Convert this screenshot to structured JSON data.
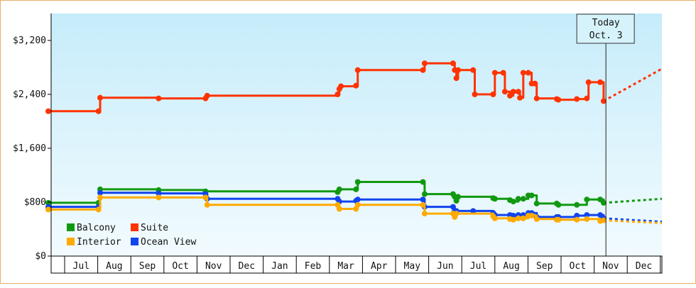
{
  "chart_data": {
    "type": "line",
    "title": "",
    "xlabel": "",
    "ylabel": "",
    "ylim": [
      0,
      3600
    ],
    "y_ticks": [
      {
        "value": 0,
        "label": "$0"
      },
      {
        "value": 800,
        "label": "$800"
      },
      {
        "value": 1600,
        "label": "$1,600"
      },
      {
        "value": 2400,
        "label": "$2,400"
      },
      {
        "value": 3200,
        "label": "$3,200"
      }
    ],
    "x_months": [
      "Jul",
      "Aug",
      "Sep",
      "Oct",
      "Nov",
      "Dec",
      "Jan",
      "Feb",
      "Mar",
      "Apr",
      "May",
      "Jun",
      "Jul",
      "Aug",
      "Sep",
      "Oct",
      "Nov",
      "Dec"
    ],
    "today": {
      "line1": "Today",
      "line2": "Oct. 3",
      "x": 15.67
    },
    "grid": false,
    "legend_position": "bottom-left",
    "background_gradient": [
      "#c6ecfa",
      "#f2fbfe"
    ],
    "series": [
      {
        "name": "Suite",
        "color": "#ff3300",
        "points": [
          [
            -1.0,
            2150
          ],
          [
            0.5,
            2150
          ],
          [
            0.55,
            2350
          ],
          [
            2.3,
            2340
          ],
          [
            3.7,
            2340
          ],
          [
            3.75,
            2380
          ],
          [
            7.65,
            2400
          ],
          [
            7.7,
            2480
          ],
          [
            7.75,
            2520
          ],
          [
            8.2,
            2530
          ],
          [
            8.25,
            2760
          ],
          [
            10.2,
            2760
          ],
          [
            10.25,
            2860
          ],
          [
            11.1,
            2860
          ],
          [
            11.15,
            2760
          ],
          [
            11.2,
            2640
          ],
          [
            11.25,
            2760
          ],
          [
            11.7,
            2760
          ],
          [
            11.75,
            2400
          ],
          [
            12.3,
            2400
          ],
          [
            12.35,
            2720
          ],
          [
            12.6,
            2720
          ],
          [
            12.65,
            2440
          ],
          [
            12.8,
            2380
          ],
          [
            12.9,
            2440
          ],
          [
            13.05,
            2440
          ],
          [
            13.1,
            2350
          ],
          [
            13.2,
            2720
          ],
          [
            13.35,
            2720
          ],
          [
            13.45,
            2560
          ],
          [
            13.55,
            2560
          ],
          [
            13.6,
            2340
          ],
          [
            14.2,
            2330
          ],
          [
            14.25,
            2320
          ],
          [
            14.8,
            2330
          ],
          [
            15.1,
            2340
          ],
          [
            15.15,
            2580
          ],
          [
            15.5,
            2580
          ],
          [
            15.6,
            2300
          ]
        ],
        "forecast": [
          [
            15.6,
            2300
          ],
          [
            18.2,
            2780
          ]
        ]
      },
      {
        "name": "Balcony",
        "color": "#119911",
        "points": [
          [
            -1.0,
            790
          ],
          [
            0.5,
            790
          ],
          [
            0.55,
            990
          ],
          [
            2.3,
            980
          ],
          [
            3.7,
            960
          ],
          [
            7.65,
            950
          ],
          [
            7.7,
            990
          ],
          [
            8.2,
            990
          ],
          [
            8.25,
            1100
          ],
          [
            10.2,
            1100
          ],
          [
            10.25,
            920
          ],
          [
            11.1,
            920
          ],
          [
            11.15,
            880
          ],
          [
            11.2,
            820
          ],
          [
            11.25,
            880
          ],
          [
            12.3,
            860
          ],
          [
            12.35,
            850
          ],
          [
            12.8,
            830
          ],
          [
            12.9,
            810
          ],
          [
            13.05,
            850
          ],
          [
            13.2,
            850
          ],
          [
            13.35,
            900
          ],
          [
            13.45,
            900
          ],
          [
            13.6,
            780
          ],
          [
            14.2,
            780
          ],
          [
            14.25,
            760
          ],
          [
            14.8,
            760
          ],
          [
            15.1,
            840
          ],
          [
            15.5,
            840
          ],
          [
            15.6,
            790
          ]
        ],
        "forecast": [
          [
            15.6,
            790
          ],
          [
            18.2,
            850
          ]
        ]
      },
      {
        "name": "Ocean View",
        "color": "#1144ee",
        "points": [
          [
            -1.0,
            730
          ],
          [
            0.5,
            730
          ],
          [
            0.55,
            940
          ],
          [
            2.3,
            930
          ],
          [
            3.7,
            920
          ],
          [
            3.75,
            850
          ],
          [
            7.65,
            850
          ],
          [
            7.7,
            810
          ],
          [
            8.2,
            820
          ],
          [
            8.25,
            840
          ],
          [
            10.2,
            840
          ],
          [
            10.25,
            730
          ],
          [
            11.1,
            730
          ],
          [
            11.15,
            670
          ],
          [
            11.2,
            670
          ],
          [
            11.7,
            670
          ],
          [
            12.3,
            640
          ],
          [
            12.35,
            610
          ],
          [
            12.8,
            610
          ],
          [
            12.9,
            600
          ],
          [
            13.05,
            610
          ],
          [
            13.2,
            610
          ],
          [
            13.35,
            640
          ],
          [
            13.45,
            640
          ],
          [
            13.6,
            580
          ],
          [
            14.2,
            580
          ],
          [
            14.25,
            580
          ],
          [
            14.8,
            600
          ],
          [
            15.1,
            610
          ],
          [
            15.5,
            610
          ],
          [
            15.6,
            560
          ]
        ],
        "forecast": [
          [
            15.6,
            560
          ],
          [
            18.2,
            510
          ]
        ]
      },
      {
        "name": "Interior",
        "color": "#ffaa00",
        "points": [
          [
            -1.0,
            690
          ],
          [
            0.5,
            690
          ],
          [
            0.55,
            870
          ],
          [
            2.3,
            870
          ],
          [
            3.7,
            870
          ],
          [
            3.75,
            760
          ],
          [
            7.65,
            760
          ],
          [
            7.7,
            700
          ],
          [
            8.2,
            700
          ],
          [
            8.25,
            760
          ],
          [
            10.2,
            760
          ],
          [
            10.25,
            630
          ],
          [
            11.1,
            630
          ],
          [
            11.15,
            580
          ],
          [
            11.2,
            630
          ],
          [
            12.3,
            590
          ],
          [
            12.35,
            560
          ],
          [
            12.8,
            550
          ],
          [
            12.9,
            540
          ],
          [
            13.05,
            560
          ],
          [
            13.2,
            560
          ],
          [
            13.35,
            600
          ],
          [
            13.45,
            600
          ],
          [
            13.6,
            550
          ],
          [
            14.2,
            540
          ],
          [
            14.25,
            540
          ],
          [
            14.8,
            540
          ],
          [
            15.1,
            550
          ],
          [
            15.5,
            520
          ],
          [
            15.6,
            530
          ]
        ],
        "forecast": [
          [
            15.6,
            530
          ],
          [
            18.2,
            490
          ]
        ]
      }
    ],
    "legend": [
      {
        "name": "Balcony",
        "color": "#119911"
      },
      {
        "name": "Suite",
        "color": "#ff3300"
      },
      {
        "name": "Interior",
        "color": "#ffaa00"
      },
      {
        "name": "Ocean View",
        "color": "#1144ee"
      }
    ]
  }
}
